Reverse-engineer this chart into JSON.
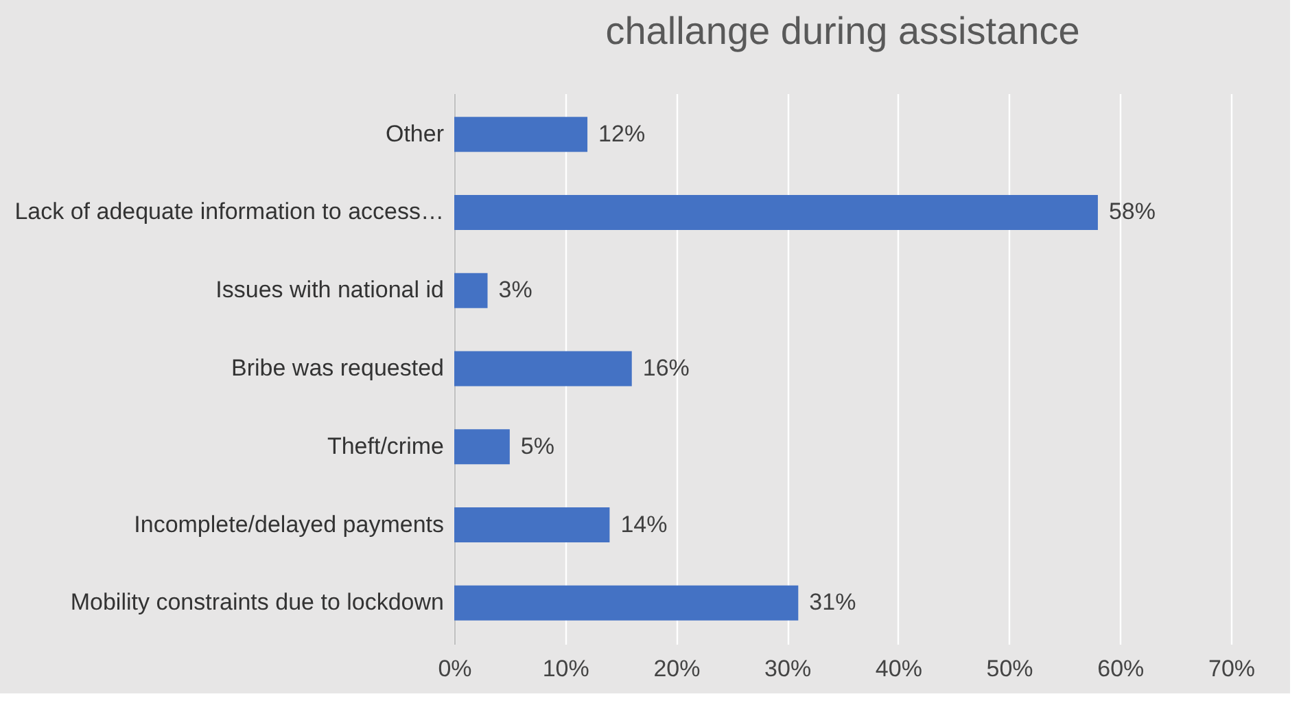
{
  "chart_data": {
    "type": "bar",
    "orientation": "horizontal",
    "title": "challange during assistance",
    "categories": [
      "Other",
      "Lack of adequate information to access…",
      "Issues with national id",
      "Bribe was requested",
      "Theft/crime",
      "Incomplete/delayed payments",
      "Mobility constraints due to lockdown"
    ],
    "values": [
      12,
      58,
      3,
      16,
      5,
      14,
      31
    ],
    "value_labels": [
      "12%",
      "58%",
      "3%",
      "16%",
      "5%",
      "14%",
      "31%"
    ],
    "color": "#4472c4",
    "xlim": [
      0,
      70
    ],
    "xticks": [
      {
        "value": 0,
        "label": "0%"
      },
      {
        "value": 10,
        "label": "10%"
      },
      {
        "value": 20,
        "label": "20%"
      },
      {
        "value": 30,
        "label": "30%"
      },
      {
        "value": 40,
        "label": "40%"
      },
      {
        "value": 50,
        "label": "50%"
      },
      {
        "value": 60,
        "label": "60%"
      },
      {
        "value": 70,
        "label": "70%"
      }
    ],
    "grid": "x"
  }
}
